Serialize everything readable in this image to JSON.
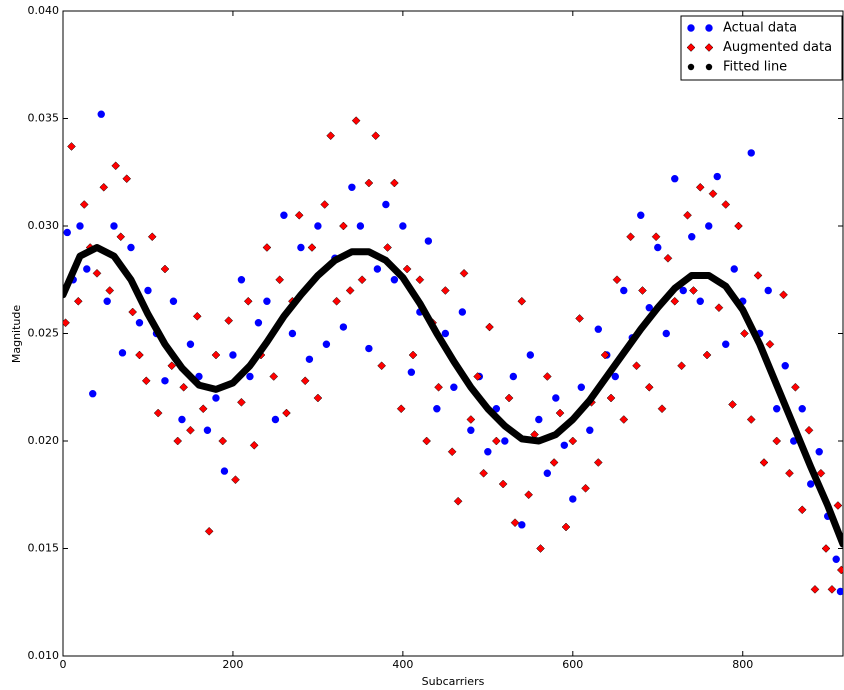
{
  "chart_data": {
    "type": "scatter",
    "xlabel": "Subcarriers",
    "ylabel": "Magnitude",
    "xlim": [
      0,
      918
    ],
    "xticks": [
      0,
      200,
      400,
      600,
      800
    ],
    "ylim": [
      0.01,
      0.04
    ],
    "yticks": [
      {
        "value": 0.01,
        "label": "0.010"
      },
      {
        "value": 0.015,
        "label": "0.015"
      },
      {
        "value": 0.02,
        "label": "0.020"
      },
      {
        "value": 0.025,
        "label": "0.025"
      },
      {
        "value": 0.03,
        "label": "0.030"
      },
      {
        "value": 0.035,
        "label": "0.035"
      },
      {
        "value": 0.04,
        "label": "0.040"
      }
    ],
    "legend": "upper right",
    "series": [
      {
        "name": "Actual data",
        "color": "#0000ff",
        "marker": "circle",
        "style": "markers",
        "x": [
          5,
          12,
          20,
          28,
          35,
          45,
          52,
          60,
          70,
          80,
          90,
          100,
          110,
          120,
          130,
          140,
          150,
          160,
          170,
          180,
          190,
          200,
          210,
          220,
          230,
          240,
          250,
          260,
          270,
          280,
          290,
          300,
          310,
          320,
          330,
          340,
          350,
          360,
          370,
          380,
          390,
          400,
          410,
          420,
          430,
          440,
          450,
          460,
          470,
          480,
          490,
          500,
          510,
          520,
          530,
          540,
          550,
          560,
          570,
          580,
          590,
          600,
          610,
          620,
          630,
          640,
          650,
          660,
          670,
          680,
          690,
          700,
          710,
          720,
          730,
          740,
          750,
          760,
          770,
          780,
          790,
          800,
          810,
          820,
          830,
          840,
          850,
          860,
          870,
          880,
          890,
          900,
          910,
          915
        ],
        "values": [
          0.0297,
          0.0275,
          0.03,
          0.028,
          0.0222,
          0.0352,
          0.0265,
          0.03,
          0.0241,
          0.029,
          0.0255,
          0.027,
          0.025,
          0.0228,
          0.0265,
          0.021,
          0.0245,
          0.023,
          0.0205,
          0.022,
          0.0186,
          0.024,
          0.0275,
          0.023,
          0.0255,
          0.0265,
          0.021,
          0.0305,
          0.025,
          0.029,
          0.0238,
          0.03,
          0.0245,
          0.0285,
          0.0253,
          0.0318,
          0.03,
          0.0243,
          0.028,
          0.031,
          0.0275,
          0.03,
          0.0232,
          0.026,
          0.0293,
          0.0215,
          0.025,
          0.0225,
          0.026,
          0.0205,
          0.023,
          0.0195,
          0.0215,
          0.02,
          0.023,
          0.0161,
          0.024,
          0.021,
          0.0185,
          0.022,
          0.0198,
          0.0173,
          0.0225,
          0.0205,
          0.0252,
          0.024,
          0.023,
          0.027,
          0.0248,
          0.0305,
          0.0262,
          0.029,
          0.025,
          0.0322,
          0.027,
          0.0295,
          0.0265,
          0.03,
          0.0323,
          0.0245,
          0.028,
          0.0265,
          0.0334,
          0.025,
          0.027,
          0.0215,
          0.0235,
          0.02,
          0.0215,
          0.018,
          0.0195,
          0.0165,
          0.0145,
          0.013
        ]
      },
      {
        "name": "Augmented data",
        "color": "#ff0000",
        "marker": "diamond",
        "style": "markers",
        "x": [
          3,
          10,
          18,
          25,
          32,
          40,
          48,
          55,
          62,
          68,
          75,
          82,
          90,
          98,
          105,
          112,
          120,
          128,
          135,
          142,
          150,
          158,
          165,
          172,
          180,
          188,
          195,
          203,
          210,
          218,
          225,
          233,
          240,
          248,
          255,
          263,
          270,
          278,
          285,
          293,
          300,
          308,
          315,
          322,
          330,
          338,
          345,
          352,
          360,
          368,
          375,
          382,
          390,
          398,
          405,
          412,
          420,
          428,
          435,
          442,
          450,
          458,
          465,
          472,
          480,
          488,
          495,
          502,
          510,
          518,
          525,
          532,
          540,
          548,
          555,
          562,
          570,
          578,
          585,
          592,
          600,
          608,
          615,
          622,
          630,
          638,
          645,
          652,
          660,
          668,
          675,
          682,
          690,
          698,
          705,
          712,
          720,
          728,
          735,
          742,
          750,
          758,
          765,
          772,
          780,
          788,
          795,
          802,
          810,
          818,
          825,
          832,
          840,
          848,
          855,
          862,
          870,
          878,
          885,
          892,
          898,
          905,
          912,
          916
        ],
        "values": [
          0.0255,
          0.0337,
          0.0265,
          0.031,
          0.029,
          0.0278,
          0.0318,
          0.027,
          0.0328,
          0.0295,
          0.0322,
          0.026,
          0.024,
          0.0228,
          0.0295,
          0.0213,
          0.028,
          0.0235,
          0.02,
          0.0225,
          0.0205,
          0.0258,
          0.0215,
          0.0158,
          0.024,
          0.02,
          0.0256,
          0.0182,
          0.0218,
          0.0265,
          0.0198,
          0.024,
          0.029,
          0.023,
          0.0275,
          0.0213,
          0.0265,
          0.0305,
          0.0228,
          0.029,
          0.022,
          0.031,
          0.0342,
          0.0265,
          0.03,
          0.027,
          0.0349,
          0.0275,
          0.032,
          0.0342,
          0.0235,
          0.029,
          0.032,
          0.0215,
          0.028,
          0.024,
          0.0275,
          0.02,
          0.0255,
          0.0225,
          0.027,
          0.0195,
          0.0172,
          0.0278,
          0.021,
          0.023,
          0.0185,
          0.0253,
          0.02,
          0.018,
          0.022,
          0.0162,
          0.0265,
          0.0175,
          0.0203,
          0.015,
          0.023,
          0.019,
          0.0213,
          0.016,
          0.02,
          0.0257,
          0.0178,
          0.0218,
          0.019,
          0.024,
          0.022,
          0.0275,
          0.021,
          0.0295,
          0.0235,
          0.027,
          0.0225,
          0.0295,
          0.0215,
          0.0285,
          0.0265,
          0.0235,
          0.0305,
          0.027,
          0.0318,
          0.024,
          0.0315,
          0.0262,
          0.031,
          0.0217,
          0.03,
          0.025,
          0.021,
          0.0277,
          0.019,
          0.0245,
          0.02,
          0.0268,
          0.0185,
          0.0225,
          0.0168,
          0.0205,
          0.0131,
          0.0185,
          0.015,
          0.0131,
          0.017,
          0.014
        ]
      },
      {
        "name": "Fitted line",
        "color": "#000000",
        "marker": "circle",
        "style": "line",
        "x": [
          0,
          20,
          40,
          60,
          80,
          100,
          120,
          140,
          160,
          180,
          200,
          220,
          240,
          260,
          280,
          300,
          320,
          340,
          360,
          380,
          400,
          420,
          440,
          460,
          480,
          500,
          520,
          540,
          560,
          580,
          600,
          620,
          640,
          660,
          680,
          700,
          720,
          740,
          760,
          780,
          800,
          820,
          840,
          860,
          880,
          900,
          918
        ],
        "values": [
          0.0268,
          0.0286,
          0.029,
          0.0286,
          0.0275,
          0.0259,
          0.0245,
          0.0234,
          0.0226,
          0.0224,
          0.0227,
          0.0235,
          0.0246,
          0.0258,
          0.0268,
          0.0277,
          0.0284,
          0.0288,
          0.0288,
          0.0284,
          0.0276,
          0.0264,
          0.025,
          0.0237,
          0.0225,
          0.0215,
          0.0207,
          0.0201,
          0.02,
          0.0203,
          0.021,
          0.0219,
          0.023,
          0.0241,
          0.0252,
          0.0262,
          0.0271,
          0.0277,
          0.0277,
          0.0272,
          0.0261,
          0.0245,
          0.0226,
          0.0207,
          0.0188,
          0.017,
          0.0152
        ]
      }
    ]
  }
}
